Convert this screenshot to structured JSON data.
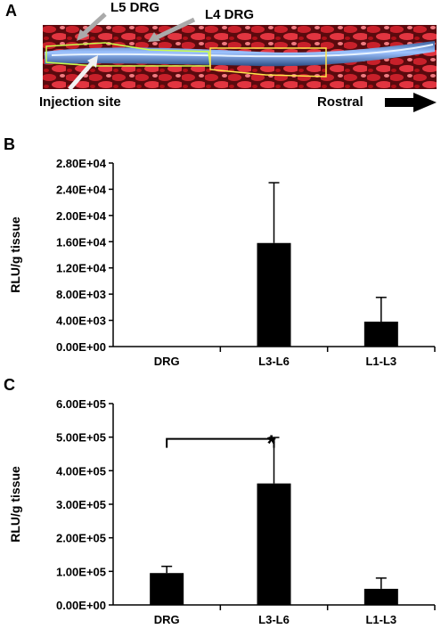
{
  "panels": {
    "a": "A",
    "b": "B",
    "c": "C"
  },
  "photo": {
    "label_l5": "L5 DRG",
    "label_l4": "L4 DRG",
    "label_injection": "Injection site",
    "label_rostral": "Rostral"
  },
  "chart_data": [
    {
      "type": "bar",
      "categories": [
        "DRG",
        "L3-L6",
        "L1-L3"
      ],
      "values": [
        0,
        15800,
        3800
      ],
      "errors": [
        0,
        9200,
        3700
      ],
      "ylabel": "RLU/g tissue",
      "yticks": [
        0,
        4000,
        8000,
        12000,
        16000,
        20000,
        24000,
        28000
      ],
      "ytick_labels": [
        "0.00E+00",
        "4.00E+03",
        "8.00E+03",
        "1.20E+04",
        "1.60E+04",
        "2.00E+04",
        "2.40E+04",
        "2.80E+04"
      ],
      "ylim": [
        0,
        28000
      ],
      "bar_color": "#000000"
    },
    {
      "type": "bar",
      "categories": [
        "DRG",
        "L3-L6",
        "L1-L3"
      ],
      "values": [
        95000,
        362000,
        48000
      ],
      "errors": [
        20000,
        137000,
        32000
      ],
      "ylabel": "RLU/g tissue",
      "yticks": [
        0,
        100000,
        200000,
        300000,
        400000,
        500000,
        600000
      ],
      "ytick_labels": [
        "0.00E+00",
        "1.00E+05",
        "2.00E+05",
        "3.00E+05",
        "4.00E+05",
        "5.00E+05",
        "6.00E+05"
      ],
      "ylim": [
        0,
        600000
      ],
      "significance": {
        "from": 0,
        "to": 1,
        "symbol": "*"
      },
      "bar_color": "#000000"
    }
  ]
}
